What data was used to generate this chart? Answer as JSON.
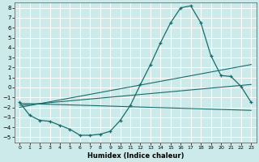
{
  "xlabel": "Humidex (Indice chaleur)",
  "bg_color": "#cceaea",
  "grid_color": "#ffffff",
  "line_color": "#1a6b6b",
  "xlim": [
    -0.5,
    23.5
  ],
  "ylim": [
    -5.5,
    8.5
  ],
  "yticks": [
    8,
    7,
    6,
    5,
    4,
    3,
    2,
    1,
    0,
    -1,
    -2,
    -3,
    -4,
    -5
  ],
  "xticks": [
    0,
    1,
    2,
    3,
    4,
    5,
    6,
    7,
    8,
    9,
    10,
    11,
    12,
    13,
    14,
    15,
    16,
    17,
    18,
    19,
    20,
    21,
    22,
    23
  ],
  "curve_x": [
    0,
    1,
    2,
    3,
    4,
    5,
    6,
    7,
    8,
    9,
    10,
    11,
    12,
    13,
    14,
    15,
    16,
    17,
    18,
    19,
    20,
    21,
    22,
    23
  ],
  "curve_y": [
    -1.5,
    -2.8,
    -3.3,
    -3.4,
    -3.8,
    -4.2,
    -4.8,
    -4.8,
    -4.7,
    -4.4,
    -3.3,
    -1.8,
    0.3,
    2.3,
    4.5,
    6.5,
    8.0,
    8.2,
    6.5,
    3.2,
    1.2,
    1.1,
    0.1,
    -1.5
  ],
  "line1_x": [
    0,
    23
  ],
  "line1_y": [
    -1.6,
    -2.3
  ],
  "line2_x": [
    0,
    23
  ],
  "line2_y": [
    -1.8,
    0.3
  ],
  "line3_x": [
    0,
    23
  ],
  "line3_y": [
    -2.0,
    2.3
  ],
  "xlabel_fontsize": 6.0,
  "ytick_fontsize": 5.0,
  "xtick_fontsize": 4.5
}
